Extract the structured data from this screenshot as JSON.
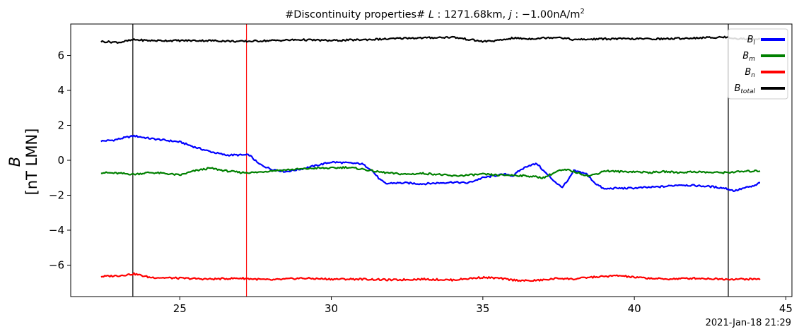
{
  "chart_data": {
    "type": "line",
    "title": {
      "prefix": "#Discontinuity properties# ",
      "L_symbol": "L",
      "L_value": " : 1271.68km, ",
      "j_symbol": "j",
      "j_value": " : −1.00nA/m",
      "j_exp": "2"
    },
    "ylabel": {
      "symbol": "B",
      "units": "[nT LMN]"
    },
    "footer": "2021-Jan-18 21:29",
    "xlim": [
      21.4,
      45.2
    ],
    "ylim": [
      -7.8,
      7.8
    ],
    "xticks": [
      25,
      30,
      35,
      40,
      45
    ],
    "yticks": [
      -6,
      -4,
      -2,
      0,
      2,
      4,
      6
    ],
    "xtick_labels": [
      "25",
      "30",
      "35",
      "40",
      "45"
    ],
    "ytick_labels": [
      "−6",
      "−4",
      "−2",
      "0",
      "2",
      "4",
      "6"
    ],
    "grid": false,
    "legend_position": "top-right",
    "vertical_lines": [
      {
        "x": 23.45,
        "color": "#000000"
      },
      {
        "x": 27.2,
        "color": "#ff0000"
      },
      {
        "x": 43.1,
        "color": "#000000"
      }
    ],
    "series": [
      {
        "name": "B_l",
        "name_base": "B",
        "name_sub": "l",
        "color": "#0000ff",
        "x": [
          22.4,
          22.8,
          23.2,
          23.5,
          24.0,
          24.5,
          25.0,
          25.5,
          26.0,
          26.5,
          27.0,
          27.3,
          27.6,
          28.0,
          28.5,
          29.0,
          29.5,
          30.0,
          30.5,
          31.0,
          31.3,
          31.6,
          31.8,
          32.0,
          32.5,
          33.0,
          33.5,
          34.0,
          34.5,
          35.0,
          35.5,
          35.8,
          36.0,
          36.2,
          36.5,
          36.8,
          37.0,
          37.3,
          37.6,
          37.8,
          38.0,
          38.4,
          38.7,
          39.0,
          39.3,
          39.8,
          40.5,
          41.0,
          41.5,
          42.0,
          42.5,
          43.0,
          43.3,
          43.6,
          44.0,
          44.15
        ],
        "y": [
          1.1,
          1.15,
          1.3,
          1.4,
          1.25,
          1.15,
          1.05,
          0.75,
          0.5,
          0.3,
          0.3,
          0.3,
          -0.2,
          -0.5,
          -0.65,
          -0.5,
          -0.3,
          -0.1,
          -0.15,
          -0.2,
          -0.5,
          -1.1,
          -1.35,
          -1.3,
          -1.3,
          -1.35,
          -1.3,
          -1.25,
          -1.3,
          -1.0,
          -0.85,
          -0.8,
          -0.9,
          -0.6,
          -0.3,
          -0.2,
          -0.6,
          -1.1,
          -1.55,
          -1.2,
          -0.6,
          -0.75,
          -1.3,
          -1.65,
          -1.6,
          -1.6,
          -1.55,
          -1.5,
          -1.4,
          -1.45,
          -1.5,
          -1.6,
          -1.75,
          -1.6,
          -1.45,
          -1.25
        ]
      },
      {
        "name": "B_m",
        "name_base": "B",
        "name_sub": "m",
        "color": "#008000",
        "x": [
          22.4,
          23.0,
          23.5,
          24.0,
          24.5,
          25.0,
          25.5,
          26.0,
          26.5,
          27.0,
          27.5,
          28.0,
          28.5,
          29.0,
          29.5,
          30.0,
          30.5,
          31.0,
          31.5,
          32.0,
          32.5,
          33.0,
          33.5,
          34.0,
          34.5,
          35.0,
          35.5,
          36.0,
          36.5,
          37.0,
          37.5,
          37.8,
          38.2,
          38.5,
          38.8,
          39.0,
          39.5,
          40.0,
          40.5,
          41.0,
          41.5,
          42.0,
          42.5,
          43.0,
          43.5,
          44.15
        ],
        "y": [
          -0.7,
          -0.75,
          -0.8,
          -0.7,
          -0.75,
          -0.85,
          -0.6,
          -0.45,
          -0.6,
          -0.7,
          -0.7,
          -0.6,
          -0.55,
          -0.5,
          -0.45,
          -0.45,
          -0.4,
          -0.5,
          -0.65,
          -0.75,
          -0.8,
          -0.75,
          -0.8,
          -0.9,
          -0.85,
          -0.8,
          -0.85,
          -0.85,
          -0.9,
          -1.0,
          -0.6,
          -0.55,
          -0.75,
          -0.9,
          -0.75,
          -0.6,
          -0.65,
          -0.65,
          -0.7,
          -0.65,
          -0.7,
          -0.65,
          -0.7,
          -0.7,
          -0.65,
          -0.6
        ]
      },
      {
        "name": "B_n",
        "name_base": "B",
        "name_sub": "n",
        "color": "#ff0000",
        "x": [
          22.4,
          23.0,
          23.5,
          24.0,
          25.0,
          26.0,
          27.0,
          28.0,
          29.0,
          30.0,
          31.0,
          32.0,
          33.0,
          34.0,
          35.0,
          35.5,
          36.0,
          36.5,
          37.0,
          37.5,
          38.0,
          38.5,
          39.0,
          39.5,
          40.0,
          41.0,
          42.0,
          43.0,
          44.15
        ],
        "y": [
          -6.65,
          -6.6,
          -6.5,
          -6.7,
          -6.75,
          -6.8,
          -6.75,
          -6.85,
          -6.75,
          -6.8,
          -6.8,
          -6.85,
          -6.8,
          -6.85,
          -6.7,
          -6.75,
          -6.85,
          -6.9,
          -6.85,
          -6.75,
          -6.8,
          -6.7,
          -6.65,
          -6.6,
          -6.7,
          -6.8,
          -6.75,
          -6.8,
          -6.8
        ]
      },
      {
        "name": "B_total",
        "name_base": "B",
        "name_sub": "total",
        "color": "#000000",
        "x": [
          22.4,
          23.0,
          23.5,
          24.0,
          25.0,
          26.0,
          27.0,
          28.0,
          29.0,
          30.0,
          31.0,
          32.0,
          32.5,
          33.0,
          34.0,
          35.0,
          35.5,
          36.0,
          36.5,
          37.0,
          37.5,
          38.0,
          39.0,
          40.0,
          41.0,
          42.0,
          43.0,
          43.5,
          44.15
        ],
        "y": [
          6.8,
          6.75,
          6.9,
          6.85,
          6.85,
          6.85,
          6.8,
          6.85,
          6.9,
          6.85,
          6.9,
          6.95,
          7.0,
          7.0,
          7.05,
          6.8,
          6.85,
          7.0,
          6.95,
          7.0,
          7.05,
          6.9,
          6.95,
          6.95,
          6.95,
          7.0,
          7.05,
          6.95,
          6.95
        ]
      }
    ]
  }
}
